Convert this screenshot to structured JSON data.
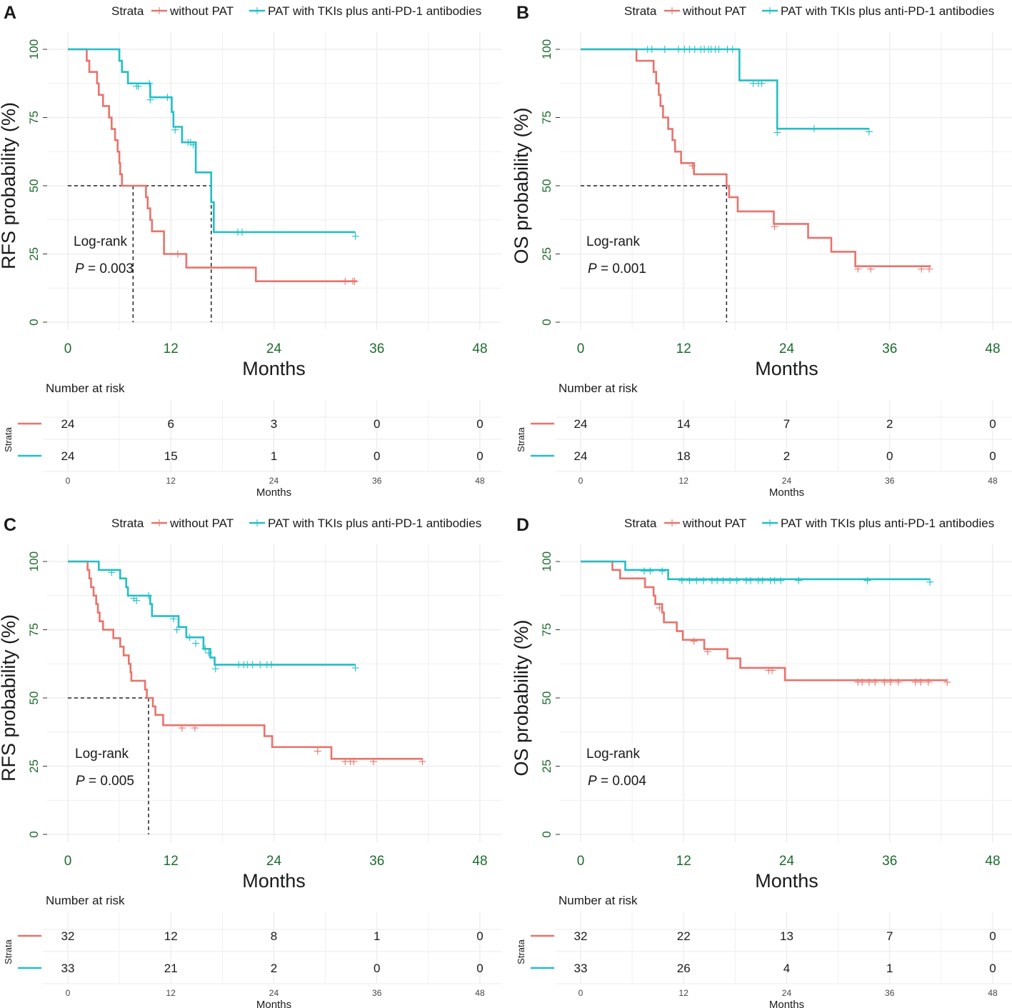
{
  "colors": {
    "red": "#e8736c",
    "teal": "#22bfc6",
    "tick": "#1d6b2e",
    "grid": "#ebebeb",
    "text": "#1a1a1a"
  },
  "legend": {
    "title": "Strata",
    "without": "without PAT",
    "with": "PAT with TKIs plus anti-PD-1 antibodies"
  },
  "common": {
    "xlabel": "Months",
    "risk_title": "Number at risk",
    "risk_ylabel": "Strata",
    "logrank": "Log-rank",
    "p_prefix": "P"
  },
  "x_ticks": [
    "0",
    "12",
    "24",
    "36",
    "48"
  ],
  "y_ticks": [
    "0",
    "25",
    "50",
    "75",
    "100"
  ],
  "chart_data": [
    {
      "panel": "A",
      "type": "line",
      "ylabel": "RFS probability (%)",
      "p_value": "= 0.003",
      "xlim": [
        0,
        48
      ],
      "ylim": [
        0,
        100
      ],
      "series": [
        {
          "name": "without PAT",
          "color": "#e8736c",
          "steps": [
            [
              0,
              100
            ],
            [
              2.2,
              95.8
            ],
            [
              2.5,
              91.7
            ],
            [
              3.4,
              87.5
            ],
            [
              3.6,
              83.3
            ],
            [
              4.1,
              79.2
            ],
            [
              4.8,
              75
            ],
            [
              5.1,
              70.8
            ],
            [
              5.5,
              66.7
            ],
            [
              5.8,
              62.5
            ],
            [
              6,
              58.3
            ],
            [
              6.1,
              54.2
            ],
            [
              6.3,
              50
            ],
            [
              9.1,
              45.8
            ],
            [
              9.3,
              41.7
            ],
            [
              9.6,
              37.5
            ],
            [
              9.8,
              33.3
            ],
            [
              11.2,
              25
            ],
            [
              13.8,
              20
            ],
            [
              21.9,
              15
            ],
            [
              33.7,
              15
            ]
          ],
          "censors": [
            [
              12.8,
              25
            ],
            [
              32.3,
              15
            ],
            [
              33.2,
              15
            ],
            [
              33.4,
              15
            ]
          ],
          "median_line": 7.6
        },
        {
          "name": "PAT with TKIs plus anti-PD-1 antibodies",
          "color": "#22bfc6",
          "steps": [
            [
              0,
              100
            ],
            [
              6,
              95.8
            ],
            [
              6.3,
              91.7
            ],
            [
              7,
              87.5
            ],
            [
              9.6,
              82.4
            ],
            [
              12.1,
              77
            ],
            [
              12.3,
              71.6
            ],
            [
              13.3,
              65.9
            ],
            [
              14.9,
              54.9
            ],
            [
              16.7,
              44
            ],
            [
              17,
              33
            ],
            [
              33.5,
              33
            ]
          ],
          "censors": [
            [
              8,
              86.5
            ],
            [
              8.2,
              86.5
            ],
            [
              9.5,
              87.5
            ],
            [
              9.6,
              81.5
            ],
            [
              11.6,
              82.4
            ],
            [
              12.5,
              70.5
            ],
            [
              14,
              65.9
            ],
            [
              14.3,
              65.9
            ],
            [
              14.6,
              65
            ],
            [
              19.8,
              33
            ],
            [
              20.3,
              33
            ],
            [
              33.5,
              31.5
            ]
          ],
          "median_line": 16.7
        }
      ],
      "risk_table": {
        "without": [
          "24",
          "6",
          "3",
          "0",
          "0"
        ],
        "with": [
          "24",
          "15",
          "1",
          "0",
          "0"
        ]
      }
    },
    {
      "panel": "B",
      "type": "line",
      "ylabel": "OS probability (%)",
      "p_value": "= 0.001",
      "xlim": [
        0,
        48
      ],
      "ylim": [
        0,
        100
      ],
      "series": [
        {
          "name": "without PAT",
          "color": "#e8736c",
          "steps": [
            [
              0,
              100
            ],
            [
              6.5,
              95.8
            ],
            [
              8.5,
              91.7
            ],
            [
              8.8,
              87.5
            ],
            [
              9.1,
              83.3
            ],
            [
              9.3,
              79.2
            ],
            [
              9.6,
              75
            ],
            [
              10.2,
              70.8
            ],
            [
              10.7,
              66.7
            ],
            [
              11,
              62.5
            ],
            [
              11.7,
              58.3
            ],
            [
              13.2,
              54.2
            ],
            [
              17,
              50
            ],
            [
              17.3,
              45.8
            ],
            [
              18.3,
              40.6
            ],
            [
              22.5,
              36
            ],
            [
              26.5,
              30.9
            ],
            [
              29.2,
              25.8
            ],
            [
              32,
              20.5
            ],
            [
              40.8,
              20.5
            ]
          ],
          "censors": [
            [
              13,
              57.3
            ],
            [
              22.6,
              35
            ],
            [
              32.3,
              19.5
            ],
            [
              33.8,
              19.5
            ],
            [
              39.7,
              19.5
            ],
            [
              40.6,
              19.5
            ]
          ],
          "median_line": 17
        },
        {
          "name": "PAT with TKIs plus anti-PD-1 antibodies",
          "color": "#22bfc6",
          "steps": [
            [
              0,
              100
            ],
            [
              18.5,
              88.6
            ],
            [
              22.9,
              70.9
            ],
            [
              33.6,
              70.9
            ]
          ],
          "censors": [
            [
              7.8,
              100
            ],
            [
              8.3,
              100
            ],
            [
              9.8,
              100
            ],
            [
              11.4,
              100
            ],
            [
              12.1,
              100
            ],
            [
              12.7,
              100
            ],
            [
              13.3,
              100
            ],
            [
              14,
              100
            ],
            [
              14.4,
              100
            ],
            [
              14.9,
              100
            ],
            [
              15.2,
              100
            ],
            [
              15.7,
              100
            ],
            [
              16.1,
              100
            ],
            [
              17.1,
              100
            ],
            [
              17.7,
              100
            ],
            [
              20.1,
              87.5
            ],
            [
              20.7,
              87.5
            ],
            [
              21.1,
              87.5
            ],
            [
              22.9,
              69.5
            ],
            [
              27.2,
              70.9
            ],
            [
              33.6,
              69.8
            ]
          ]
        }
      ],
      "risk_table": {
        "without": [
          "24",
          "14",
          "7",
          "2",
          "0"
        ],
        "with": [
          "24",
          "18",
          "2",
          "0",
          "0"
        ]
      }
    },
    {
      "panel": "C",
      "type": "line",
      "ylabel": "RFS probability (%)",
      "p_value": "= 0.005",
      "xlim": [
        0,
        48
      ],
      "ylim": [
        0,
        100
      ],
      "series": [
        {
          "name": "without PAT",
          "color": "#e8736c",
          "steps": [
            [
              0,
              100
            ],
            [
              2.3,
              96.9
            ],
            [
              2.5,
              93.8
            ],
            [
              2.7,
              90.6
            ],
            [
              3,
              87.5
            ],
            [
              3.3,
              84.4
            ],
            [
              3.5,
              81.3
            ],
            [
              3.7,
              78.1
            ],
            [
              4.1,
              75
            ],
            [
              5.3,
              71.9
            ],
            [
              6.1,
              68.8
            ],
            [
              6.5,
              65.6
            ],
            [
              7.1,
              62.5
            ],
            [
              7.3,
              59.4
            ],
            [
              7.4,
              56.3
            ],
            [
              9,
              53.1
            ],
            [
              9.2,
              50
            ],
            [
              9.9,
              46.9
            ],
            [
              10.2,
              43.8
            ],
            [
              11.1,
              40
            ],
            [
              22.9,
              36
            ],
            [
              23.8,
              32
            ],
            [
              30.7,
              27.7
            ],
            [
              41.3,
              27.7
            ]
          ],
          "censors": [
            [
              13.3,
              39
            ],
            [
              14.8,
              39
            ],
            [
              29.1,
              30.5
            ],
            [
              32.3,
              26.7
            ],
            [
              32.9,
              26.7
            ],
            [
              33.3,
              26.7
            ],
            [
              35.6,
              26.7
            ],
            [
              41.3,
              26.7
            ]
          ],
          "median_line": 9.4
        },
        {
          "name": "PAT with TKIs plus anti-PD-1 antibodies",
          "color": "#22bfc6",
          "steps": [
            [
              0,
              100
            ],
            [
              3.6,
              96.9
            ],
            [
              6.1,
              93.8
            ],
            [
              6.8,
              90.6
            ],
            [
              7,
              87.5
            ],
            [
              9.6,
              84.4
            ],
            [
              9.8,
              80
            ],
            [
              12.9,
              76
            ],
            [
              13.8,
              72.2
            ],
            [
              15.8,
              68
            ],
            [
              16.6,
              64.8
            ],
            [
              17.1,
              62.2
            ],
            [
              33.5,
              62.2
            ]
          ],
          "censors": [
            [
              5.1,
              96
            ],
            [
              7.7,
              86.5
            ],
            [
              8,
              85.7
            ],
            [
              9.4,
              87.5
            ],
            [
              12.3,
              79
            ],
            [
              12.7,
              75
            ],
            [
              14.2,
              72.2
            ],
            [
              14.9,
              70
            ],
            [
              16,
              68
            ],
            [
              16.4,
              66.5
            ],
            [
              17.2,
              60.7
            ],
            [
              19.9,
              62.2
            ],
            [
              20.5,
              62.2
            ],
            [
              20.9,
              62.2
            ],
            [
              21.5,
              62.2
            ],
            [
              22.4,
              62.2
            ],
            [
              23.2,
              62.2
            ],
            [
              23.7,
              62.2
            ],
            [
              33.5,
              61
            ]
          ],
          "median_line": null
        }
      ],
      "risk_table": {
        "without": [
          "32",
          "12",
          "8",
          "1",
          "0"
        ],
        "with": [
          "33",
          "21",
          "2",
          "0",
          "0"
        ]
      }
    },
    {
      "panel": "D",
      "type": "line",
      "ylabel": "OS probability (%)",
      "p_value": "= 0.004",
      "xlim": [
        0,
        48
      ],
      "ylim": [
        0,
        100
      ],
      "series": [
        {
          "name": "without PAT",
          "color": "#e8736c",
          "steps": [
            [
              0,
              100
            ],
            [
              3.7,
              96.9
            ],
            [
              4.6,
              93.8
            ],
            [
              7.5,
              90.6
            ],
            [
              8.5,
              87.5
            ],
            [
              8.7,
              84.4
            ],
            [
              9.5,
              81.3
            ],
            [
              9.7,
              77.7
            ],
            [
              11.2,
              74.5
            ],
            [
              11.9,
              71.3
            ],
            [
              14.4,
              67.9
            ],
            [
              17.1,
              64.5
            ],
            [
              18.6,
              61
            ],
            [
              23.8,
              56.5
            ],
            [
              42.7,
              56.5
            ]
          ],
          "censors": [
            [
              9.2,
              83
            ],
            [
              13.2,
              70.8
            ],
            [
              14.8,
              67
            ],
            [
              21.9,
              60.1
            ],
            [
              22.3,
              60.1
            ],
            [
              32.3,
              55.8
            ],
            [
              32.8,
              55.8
            ],
            [
              33.6,
              55.8
            ],
            [
              34.3,
              55.8
            ],
            [
              35.4,
              55.8
            ],
            [
              36.1,
              55.8
            ],
            [
              37,
              55.8
            ],
            [
              39,
              55.8
            ],
            [
              39.6,
              55.8
            ],
            [
              40.5,
              55.8
            ],
            [
              42.7,
              55.8
            ]
          ]
        },
        {
          "name": "PAT with TKIs plus anti-PD-1 antibodies",
          "color": "#22bfc6",
          "steps": [
            [
              0,
              100
            ],
            [
              5.2,
              96.9
            ],
            [
              10.2,
              93.5
            ],
            [
              40.7,
              93.5
            ]
          ],
          "censors": [
            [
              7.4,
              96.5
            ],
            [
              8.1,
              96.5
            ],
            [
              9.5,
              96.5
            ],
            [
              11.8,
              93
            ],
            [
              12.7,
              93
            ],
            [
              13.5,
              93
            ],
            [
              14.3,
              93
            ],
            [
              15.3,
              93
            ],
            [
              15.9,
              93
            ],
            [
              16.6,
              93
            ],
            [
              17.4,
              93
            ],
            [
              18.2,
              93
            ],
            [
              19.3,
              93
            ],
            [
              19.8,
              93
            ],
            [
              20.7,
              93
            ],
            [
              21.2,
              93
            ],
            [
              22.1,
              93
            ],
            [
              22.6,
              93
            ],
            [
              23.3,
              93
            ],
            [
              25.4,
              93
            ],
            [
              33.4,
              93
            ],
            [
              40.7,
              92.5
            ]
          ]
        }
      ],
      "risk_table": {
        "without": [
          "32",
          "22",
          "13",
          "7",
          "0"
        ],
        "with": [
          "33",
          "26",
          "4",
          "1",
          "0"
        ]
      }
    }
  ]
}
